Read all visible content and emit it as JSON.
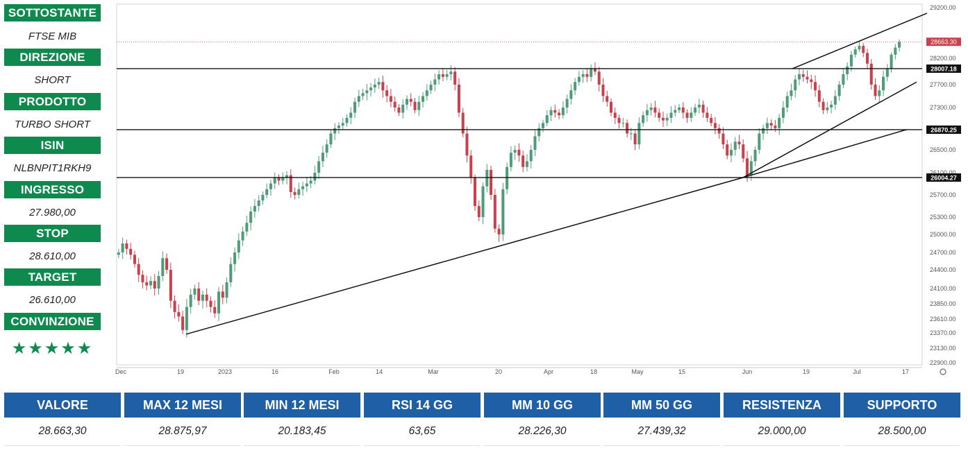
{
  "sidebar": [
    {
      "label": "SOTTOSTANTE",
      "value": "FTSE MIB"
    },
    {
      "label": "DIREZIONE",
      "value": "SHORT"
    },
    {
      "label": "PRODOTTO",
      "value": "TURBO SHORT"
    },
    {
      "label": "ISIN",
      "value": "NLBNPIT1RKH9"
    },
    {
      "label": "INGRESSO",
      "value": "27.980,00"
    },
    {
      "label": "STOP",
      "value": "28.610,00"
    },
    {
      "label": "TARGET",
      "value": "26.610,00"
    },
    {
      "label": "CONVINZIONE",
      "value": "★★★★★"
    }
  ],
  "stats": [
    {
      "label": "VALORE",
      "value": "28.663,30"
    },
    {
      "label": "MAX 12 MESI",
      "value": "28.875,97"
    },
    {
      "label": "MIN 12 MESI",
      "value": "20.183,45"
    },
    {
      "label": "RSI 14 GG",
      "value": "63,65"
    },
    {
      "label": "MM 10 GG",
      "value": "28.226,30"
    },
    {
      "label": "MM 50 GG",
      "value": "27.439,32"
    },
    {
      "label": "RESISTENZA",
      "value": "29.000,00"
    },
    {
      "label": "SUPPORTO",
      "value": "28.500,00"
    }
  ],
  "colors": {
    "up": "#4e9c78",
    "down": "#c8424d",
    "green": "#0f8a4f",
    "blue": "#1f5fa6"
  },
  "chart_data": {
    "type": "candlestick",
    "instrument": "FTSE MIB",
    "ylim": [
      22800,
      29300
    ],
    "y_ticks": [
      "29200.00",
      "28200.00",
      "27700.00",
      "27300.00",
      "26500.00",
      "26100.00",
      "25700.00",
      "25300.00",
      "25000.00",
      "24700.00",
      "24400.00",
      "24100.00",
      "23850.00",
      "23610.00",
      "23370.00",
      "23130.00",
      "22900.00"
    ],
    "x_ticks": [
      "Dec",
      "19",
      "2023",
      "16",
      "Feb",
      "14",
      "Mar",
      "20",
      "Apr",
      "18",
      "May",
      "15",
      "Jun",
      "19",
      "Jul",
      "17"
    ],
    "horizontal_levels": [
      {
        "label": "28007.18",
        "value": 28007.18
      },
      {
        "label": "26870.25",
        "value": 26870.25
      },
      {
        "label": "26004.27",
        "value": 26004.27
      }
    ],
    "last_price": {
      "label": "28663.30",
      "value": 28663.3
    },
    "trendlines": [
      {
        "from": [
          "19 Dec",
          23350
        ],
        "to": [
          "1 Jun",
          26004
        ]
      },
      {
        "from": [
          "1 Jun",
          26004
        ],
        "to": [
          "17 Jul",
          26870
        ]
      },
      {
        "from": [
          "1 Jun",
          26004
        ],
        "to": [
          "17 Jul",
          27750
        ]
      },
      {
        "from": [
          "28 Jun",
          28007
        ],
        "to": [
          "17 Jul",
          29130
        ]
      }
    ],
    "close": [
      24700,
      24850,
      24760,
      24660,
      24500,
      24320,
      24200,
      24150,
      24220,
      24100,
      24300,
      24600,
      24400,
      23900,
      23720,
      23650,
      23420,
      23800,
      24000,
      24100,
      23900,
      24000,
      23900,
      23800,
      23700,
      24050,
      23950,
      24200,
      24500,
      24700,
      24900,
      25050,
      25200,
      25400,
      25500,
      25600,
      25700,
      25800,
      25900,
      26000,
      25950,
      26000,
      26050,
      25750,
      25700,
      25800,
      25850,
      25900,
      25950,
      26100,
      26300,
      26450,
      26600,
      26800,
      26900,
      26950,
      27000,
      27100,
      27200,
      27400,
      27500,
      27550,
      27600,
      27650,
      27700,
      27750,
      27600,
      27500,
      27400,
      27300,
      27200,
      27350,
      27450,
      27400,
      27250,
      27400,
      27500,
      27600,
      27700,
      27800,
      27900,
      27850,
      27900,
      27950,
      27700,
      27200,
      26800,
      26400,
      26000,
      25500,
      25300,
      25850,
      26150,
      25700,
      25100,
      25000,
      25800,
      26200,
      26450,
      26500,
      26400,
      26200,
      26300,
      26500,
      26750,
      26900,
      27000,
      27150,
      27250,
      27200,
      27150,
      27300,
      27450,
      27600,
      27750,
      27850,
      27900,
      27850,
      28000,
      27950,
      27700,
      27500,
      27400,
      27200,
      27100,
      27000,
      27000,
      26800,
      26800,
      26600,
      27000,
      27150,
      27250,
      27300,
      27200,
      27100,
      27050,
      27100,
      27200,
      27250,
      27300,
      27200,
      27100,
      27200,
      27300,
      27350,
      27200,
      27100,
      27000,
      26900,
      26800,
      26600,
      26400,
      26500,
      26650,
      26600,
      26350,
      26050,
      26300,
      26500,
      26800,
      26900,
      27000,
      26950,
      26900,
      27100,
      27300,
      27500,
      27600,
      27800,
      27900,
      27850,
      27800,
      27750,
      27600,
      27400,
      27250,
      27300,
      27350,
      27500,
      27700,
      27900,
      28050,
      28300,
      28450,
      28550,
      28350,
      28100,
      27700,
      27500,
      27600,
      27850,
      28000,
      28300,
      28500,
      28663
    ]
  }
}
